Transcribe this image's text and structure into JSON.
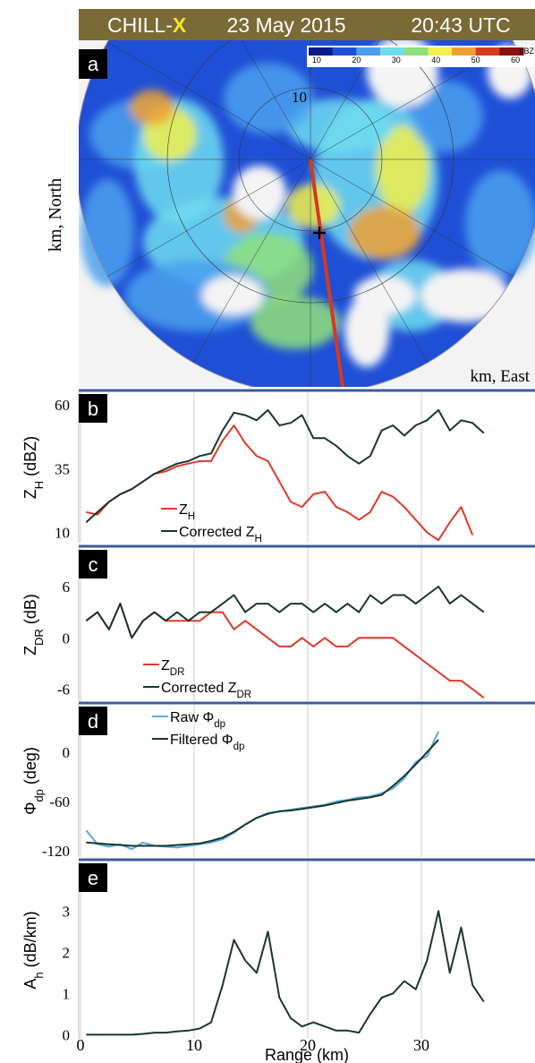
{
  "header": {
    "instrument": "CHILL-",
    "band": "X",
    "date": "23 May 2015",
    "time": "20:43 UTC"
  },
  "chart_data": [
    {
      "type": "ppi",
      "panel": "a",
      "ylabel": "km, North",
      "xlabel": "km, East",
      "rings": [
        10,
        20
      ],
      "colorbar": {
        "clim": [
          8,
          62
        ],
        "ticks": [
          10,
          20,
          30,
          40,
          50,
          60
        ],
        "unit": "dBZ",
        "colors": [
          "#0a1a8c",
          "#1f4fd6",
          "#4aa0ee",
          "#6fdcf0",
          "#8fe07a",
          "#f2f04a",
          "#f0a030",
          "#d83a1e",
          "#8a1010"
        ]
      }
    },
    {
      "type": "line",
      "panel": "b",
      "ylabel": {
        "main": "Z",
        "sub": "H",
        "rest": " (dBZ)"
      },
      "xlim": [
        0,
        40
      ],
      "xticks": [
        0,
        10,
        20,
        30
      ],
      "ylim": [
        6,
        65
      ],
      "yticks": [
        10,
        35,
        60
      ],
      "grid": true,
      "x": [
        0.5,
        1.5,
        2.5,
        3.5,
        4.5,
        5.5,
        6.5,
        7.5,
        8.5,
        9.5,
        10.5,
        11.5,
        12.5,
        13.5,
        14.5,
        15.5,
        16.5,
        17.5,
        18.5,
        19.5,
        20.5,
        21.5,
        22.5,
        23.5,
        24.5,
        25.5,
        26.5,
        27.5,
        28.5,
        29.5,
        30.5,
        31.5,
        32.5,
        33.5,
        34.5,
        35.5
      ],
      "series": [
        {
          "name": "Z",
          "name_sub": "H",
          "color": "#e0392b",
          "values": [
            18,
            17,
            22,
            25,
            27,
            30,
            33,
            34,
            36,
            37,
            38,
            38,
            46,
            52,
            45,
            40,
            38,
            30,
            22,
            20,
            25,
            26,
            20,
            18,
            15,
            18,
            26,
            24,
            20,
            15,
            10,
            7,
            14,
            20,
            9,
            null
          ]
        },
        {
          "name": "Corrected Z",
          "name_sub": "H",
          "color": "#17372a",
          "values": [
            14,
            18,
            22,
            25,
            27,
            30,
            33,
            35,
            37,
            38,
            40,
            41,
            50,
            57,
            56,
            54,
            58,
            52,
            53,
            56,
            47,
            47,
            44,
            40,
            37,
            40,
            50,
            52,
            48,
            52,
            54,
            58,
            50,
            54,
            53,
            49
          ]
        }
      ]
    },
    {
      "type": "line",
      "panel": "c",
      "ylabel": {
        "main": "Z",
        "sub": "DR",
        "rest": " (dB)"
      },
      "xlim": [
        0,
        40
      ],
      "xticks": [
        0,
        10,
        20,
        30
      ],
      "ylim": [
        -7.4,
        10.5
      ],
      "yticks": [
        -6,
        0,
        6
      ],
      "grid": true,
      "x": [
        0.5,
        1.5,
        2.5,
        3.5,
        4.5,
        5.5,
        6.5,
        7.5,
        8.5,
        9.5,
        10.5,
        11.5,
        12.5,
        13.5,
        14.5,
        15.5,
        16.5,
        17.5,
        18.5,
        19.5,
        20.5,
        21.5,
        22.5,
        23.5,
        24.5,
        25.5,
        26.5,
        27.5,
        28.5,
        29.5,
        30.5,
        31.5,
        32.5,
        33.5,
        34.5,
        35.5
      ],
      "series": [
        {
          "name": "Z",
          "name_sub": "DR",
          "color": "#e0392b",
          "values": [
            2,
            3,
            1,
            4,
            0,
            2,
            3,
            2,
            2,
            2,
            2,
            3,
            3,
            1,
            2,
            1,
            0,
            -1,
            -1,
            0,
            -1,
            0,
            -1,
            -1,
            0,
            0,
            0,
            0,
            -1,
            -2,
            -3,
            -4,
            -5,
            -5,
            -6,
            -7
          ]
        },
        {
          "name": "Corrected Z",
          "name_sub": "DR",
          "color": "#17372a",
          "values": [
            2,
            3,
            1,
            4,
            0,
            2,
            3,
            2,
            3,
            2,
            3,
            3,
            4,
            5,
            3,
            4,
            4,
            3,
            4,
            4,
            3,
            4,
            3,
            4,
            3,
            5,
            4,
            5,
            5,
            4,
            5,
            6,
            4,
            5,
            4,
            3
          ]
        }
      ]
    },
    {
      "type": "line",
      "panel": "d",
      "ylabel": {
        "main": "Φ",
        "sub": "dp",
        "rest": " (deg)"
      },
      "xlim": [
        0,
        40
      ],
      "xticks": [
        0,
        10,
        20,
        30
      ],
      "ylim": [
        -127.6,
        57.6
      ],
      "yticks": [
        -120,
        -60,
        0
      ],
      "grid": true,
      "x": [
        0.5,
        1.5,
        2.5,
        3.5,
        4.5,
        5.5,
        6.5,
        7.5,
        8.5,
        9.5,
        10.5,
        11.5,
        12.5,
        13.5,
        14.5,
        15.5,
        16.5,
        17.5,
        18.5,
        19.5,
        20.5,
        21.5,
        22.5,
        23.5,
        24.5,
        25.5,
        26.5,
        27.5,
        28.5,
        29.5,
        30.5,
        31.5
      ],
      "series": [
        {
          "name": "Raw Φ",
          "name_sub": "dp",
          "color": "#5aa9e6",
          "values": [
            -95,
            -112,
            -115,
            -112,
            -118,
            -110,
            -114,
            -115,
            -116,
            -114,
            -112,
            -110,
            -106,
            -98,
            -88,
            -80,
            -74,
            -72,
            -70,
            -68,
            -66,
            -64,
            -60,
            -58,
            -55,
            -54,
            -50,
            -44,
            -32,
            -12,
            -5,
            25
          ]
        },
        {
          "name": "Filtered Φ",
          "name_sub": "dp",
          "color": "#17372a",
          "values": [
            -110,
            -111,
            -112,
            -113,
            -114,
            -114,
            -114,
            -114,
            -113,
            -112,
            -111,
            -108,
            -104,
            -97,
            -88,
            -80,
            -75,
            -72,
            -71,
            -69,
            -67,
            -65,
            -62,
            -59,
            -57,
            -55,
            -52,
            -41,
            -29,
            -15,
            0,
            15
          ]
        }
      ]
    },
    {
      "type": "line",
      "panel": "e",
      "ylabel": {
        "main": "A",
        "sub": "h",
        "rest": " (dB/km)"
      },
      "xlabel": "Range (km)",
      "xlim": [
        0,
        40
      ],
      "xticks": [
        0,
        10,
        20,
        30
      ],
      "ylim": [
        -0.1,
        4.2
      ],
      "yticks": [
        0,
        1,
        2,
        3
      ],
      "grid": true,
      "x": [
        0.5,
        1.5,
        2.5,
        3.5,
        4.5,
        5.5,
        6.5,
        7.5,
        8.5,
        9.5,
        10.5,
        11.5,
        12.5,
        13.5,
        14.5,
        15.5,
        16.5,
        17.5,
        18.5,
        19.5,
        20.5,
        21.5,
        22.5,
        23.5,
        24.5,
        25.5,
        26.5,
        27.5,
        28.5,
        29.5,
        30.5,
        31.5,
        32.5,
        33.5,
        34.5,
        35.5
      ],
      "series": [
        {
          "color": "#17372a",
          "values": [
            0,
            0,
            0,
            0,
            0,
            0.02,
            0.05,
            0.05,
            0.08,
            0.1,
            0.15,
            0.3,
            1.2,
            2.3,
            1.8,
            1.5,
            2.5,
            0.9,
            0.4,
            0.2,
            0.3,
            0.2,
            0.1,
            0.1,
            0.05,
            0.5,
            0.9,
            1.0,
            1.3,
            1.1,
            1.8,
            3.0,
            1.5,
            2.6,
            1.2,
            0.8
          ]
        }
      ]
    }
  ]
}
